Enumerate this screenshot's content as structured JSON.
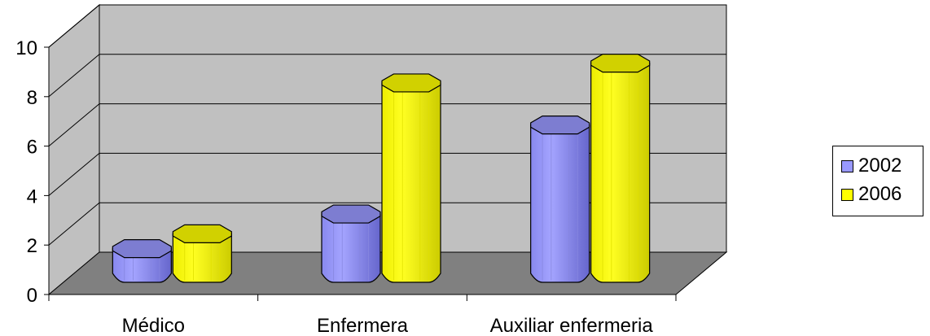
{
  "chart_data": {
    "type": "bar",
    "style": "3d-cylinder",
    "categories": [
      "Médico",
      "Enfermera",
      "Auxiliar enfermeria"
    ],
    "series": [
      {
        "name": "2002",
        "values": [
          1,
          2.4,
          6
        ],
        "color": "#9999FF"
      },
      {
        "name": "2006",
        "values": [
          1.6,
          7.7,
          8.5
        ],
        "color": "#FFFF00"
      }
    ],
    "yticks": [
      "0",
      "2",
      "4",
      "6",
      "8",
      "10"
    ],
    "ylim": [
      0,
      10
    ],
    "grid": true,
    "legend_position": "right",
    "colors": {
      "wall": "#C0C0C0",
      "floor": "#808080",
      "gridline": "#000000"
    }
  }
}
